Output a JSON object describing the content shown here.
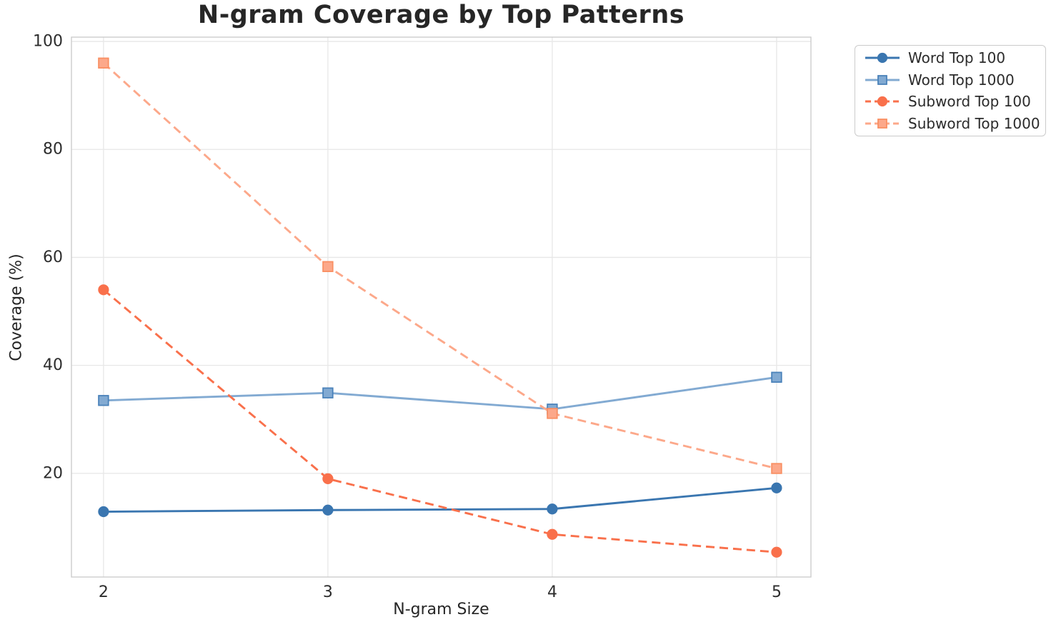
{
  "chart_data": {
    "type": "line",
    "title": "N-gram Coverage by Top Patterns",
    "xlabel": "N-gram Size",
    "ylabel": "Coverage (%)",
    "x": [
      2,
      3,
      4,
      5
    ],
    "xtick_labels": [
      "2",
      "3",
      "4",
      "5"
    ],
    "ytick_values": [
      20,
      40,
      60,
      80,
      100
    ],
    "xlim": [
      1.857,
      5.153
    ],
    "ylim": [
      0.8,
      100.8
    ],
    "grid": true,
    "legend_position": "outside-top-right",
    "series": [
      {
        "name": "Word Top 100",
        "marker": "circle",
        "line_style": "solid",
        "color": "#3a76b0",
        "marker_edge": "#3a76b0",
        "values": [
          12.9,
          13.2,
          13.4,
          17.3
        ]
      },
      {
        "name": "Word Top 1000",
        "marker": "square",
        "line_style": "solid",
        "color": "#82aad2",
        "marker_edge": "#4a82ba",
        "values": [
          33.5,
          34.9,
          31.9,
          37.8
        ]
      },
      {
        "name": "Subword Top 100",
        "marker": "circle",
        "line_style": "dashed",
        "color": "#f9704b",
        "marker_edge": "#f9704b",
        "values": [
          54.0,
          19.0,
          8.7,
          5.4
        ]
      },
      {
        "name": "Subword Top 1000",
        "marker": "square",
        "line_style": "dashed",
        "color": "#fca88a",
        "marker_edge": "#f98f63",
        "values": [
          96.0,
          58.3,
          31.1,
          20.9
        ]
      }
    ],
    "axis_style": {
      "grid_color": "#e7e7e7",
      "spine_color": "#cccccc",
      "tick_label_color": "#2d2d2d"
    }
  }
}
